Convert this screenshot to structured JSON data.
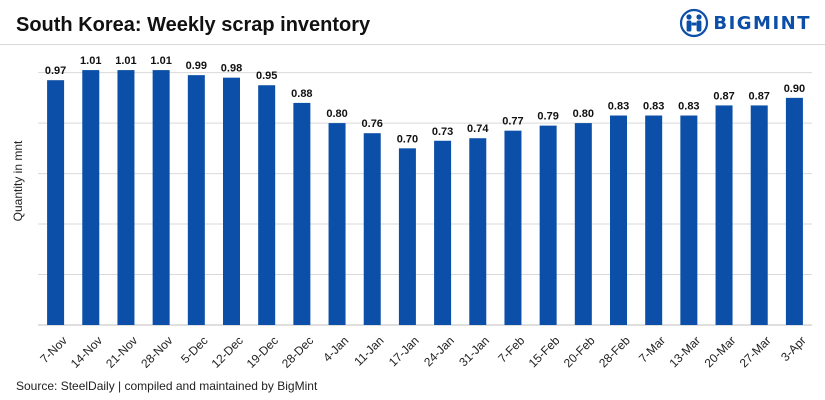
{
  "header": {
    "title": "South Korea: Weekly scrap inventory",
    "brand": "BIGMINT"
  },
  "footer": {
    "source": "Source: SteelDaily | compiled and maintained by BigMint"
  },
  "colors": {
    "bar": "#0b4fa8",
    "brand": "#0b4fa8",
    "grid": "#d9d9d9"
  },
  "chart_data": {
    "type": "bar",
    "title": "South Korea: Weekly scrap inventory",
    "ylabel": "Quantity in mnt",
    "xlabel": "",
    "categories": [
      "7-Nov",
      "14-Nov",
      "21-Nov",
      "28-Nov",
      "5-Dec",
      "12-Dec",
      "19-Dec",
      "28-Dec",
      "4-Jan",
      "11-Jan",
      "17-Jan",
      "24-Jan",
      "31-Jan",
      "7-Feb",
      "15-Feb",
      "20-Feb",
      "28-Feb",
      "7-Mar",
      "13-Mar",
      "20-Mar",
      "27-Mar",
      "3-Apr"
    ],
    "values": [
      0.97,
      1.01,
      1.01,
      1.01,
      0.99,
      0.98,
      0.95,
      0.88,
      0.8,
      0.76,
      0.7,
      0.73,
      0.74,
      0.77,
      0.79,
      0.8,
      0.83,
      0.83,
      0.83,
      0.87,
      0.87,
      0.9
    ],
    "value_labels": [
      "0.97",
      "1.01",
      "1.01",
      "1.01",
      "0.99",
      "0.98",
      "0.95",
      "0.88",
      "0.80",
      "0.76",
      "0.70",
      "0.73",
      "0.74",
      "0.77",
      "0.79",
      "0.80",
      "0.83",
      "0.83",
      "0.83",
      "0.87",
      "0.87",
      "0.90"
    ],
    "ylim": [
      0,
      1.05
    ],
    "grid": true,
    "legend": "none"
  }
}
